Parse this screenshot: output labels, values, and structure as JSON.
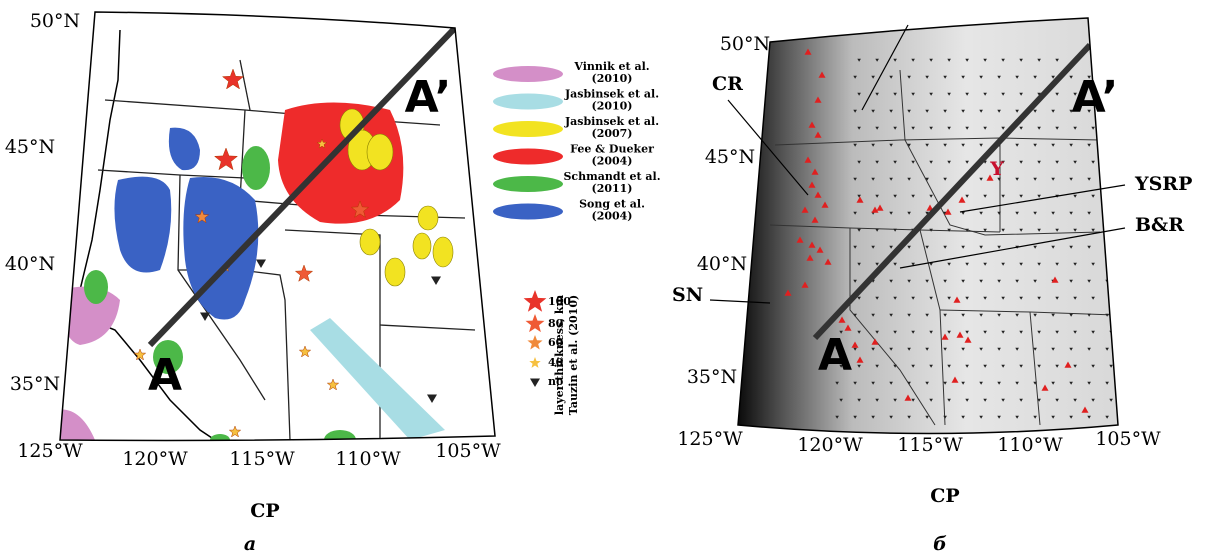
{
  "panels": [
    {
      "caption": "а",
      "bottom_label": "CP",
      "lat_labels": [
        "50°N",
        "45°N",
        "40°N",
        "35°N"
      ],
      "lon_labels": [
        "125°W",
        "120°W",
        "115°W",
        "110°W",
        "105°W"
      ],
      "profile": {
        "start": "A",
        "end": "A’"
      },
      "legend": [
        {
          "label": "Vinnik et al.",
          "year": "(2010)",
          "color": "#d48fc8"
        },
        {
          "label": "Jasbinsek et al.",
          "year": "(2010)",
          "color": "#a8dde4"
        },
        {
          "label": "Jasbinsek et al.",
          "year": "(2007)",
          "color": "#f2e321"
        },
        {
          "label": "Fee & Dueker",
          "year": "(2004)",
          "color": "#ee2b2b"
        },
        {
          "label": "Schmandt et al.",
          "year": "(2011)",
          "color": "#4cb848"
        },
        {
          "label": "Song et al.",
          "year": "(2004)",
          "color": "#3a62c4"
        }
      ],
      "star_legend": {
        "title": "layer thickness, km",
        "source": "Tauzin et al. (2010)",
        "items": [
          "100",
          "80",
          "60",
          "40",
          "no"
        ]
      }
    },
    {
      "caption": "б",
      "bottom_label": "CP",
      "lat_labels": [
        "50°N",
        "45°N",
        "40°N",
        "35°N"
      ],
      "lon_labels": [
        "125°W",
        "120°W",
        "115°W",
        "110°W",
        "105°W"
      ],
      "profile": {
        "start": "A",
        "end": "A’"
      },
      "regions": [
        "CR",
        "YSRP",
        "B&R",
        "SN",
        "Y"
      ]
    }
  ]
}
